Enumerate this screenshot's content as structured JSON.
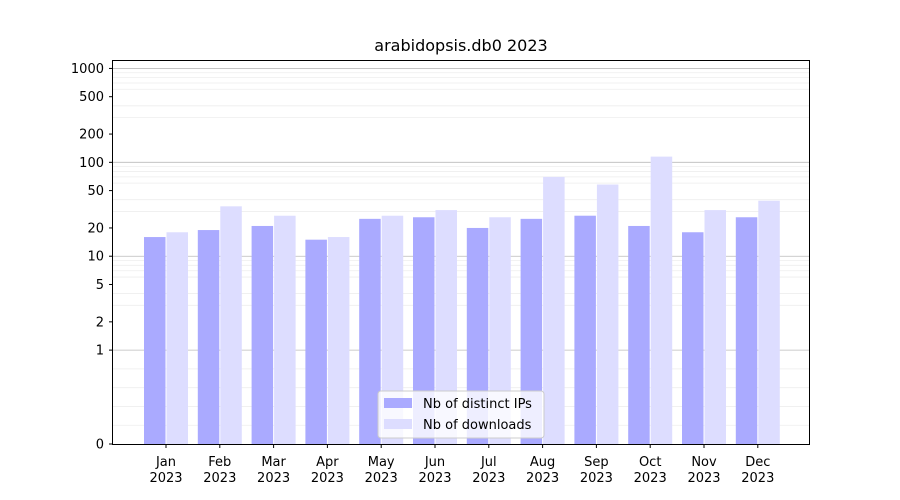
{
  "chart_data": {
    "type": "bar",
    "title": "arabidopsis.db0 2023",
    "xlabel": "",
    "ylabel": "",
    "yscale": "symlog",
    "ylim": [
      0,
      1200
    ],
    "yticks": [
      0,
      1,
      2,
      5,
      10,
      20,
      50,
      100,
      200,
      500,
      1000
    ],
    "ytick_labels": [
      "0",
      "1",
      "2",
      "5",
      "10",
      "20",
      "50",
      "100",
      "200",
      "500",
      "1000"
    ],
    "categories": [
      "Jan\n2023",
      "Feb\n2023",
      "Mar\n2023",
      "Apr\n2023",
      "May\n2023",
      "Jun\n2023",
      "Jul\n2023",
      "Aug\n2023",
      "Sep\n2023",
      "Oct\n2023",
      "Nov\n2023",
      "Dec\n2023"
    ],
    "category_lines": [
      [
        "Jan",
        "2023"
      ],
      [
        "Feb",
        "2023"
      ],
      [
        "Mar",
        "2023"
      ],
      [
        "Apr",
        "2023"
      ],
      [
        "May",
        "2023"
      ],
      [
        "Jun",
        "2023"
      ],
      [
        "Jul",
        "2023"
      ],
      [
        "Aug",
        "2023"
      ],
      [
        "Sep",
        "2023"
      ],
      [
        "Oct",
        "2023"
      ],
      [
        "Nov",
        "2023"
      ],
      [
        "Dec",
        "2023"
      ]
    ],
    "series": [
      {
        "name": "Nb of distinct IPs",
        "color": "#aaaaff",
        "values": [
          16,
          19,
          21,
          15,
          25,
          26,
          20,
          25,
          27,
          21,
          18,
          26
        ]
      },
      {
        "name": "Nb of downloads",
        "color": "#ddddff",
        "values": [
          18,
          34,
          27,
          16,
          27,
          31,
          26,
          70,
          58,
          115,
          31,
          39
        ]
      }
    ],
    "grid": true,
    "legend_position": "bottom-center"
  }
}
